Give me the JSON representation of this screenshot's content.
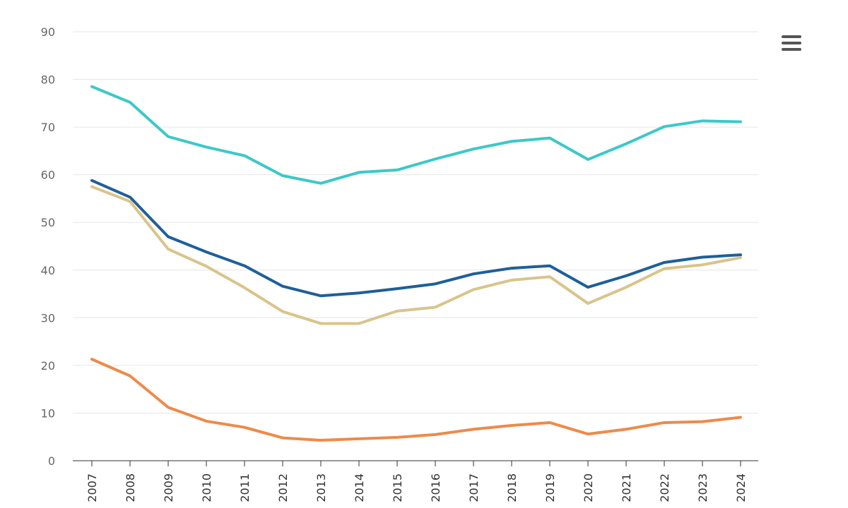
{
  "chart_data": {
    "type": "line",
    "title": "",
    "xlabel": "",
    "ylabel": "",
    "ylim": [
      0,
      90
    ],
    "yticks": [
      0,
      10,
      20,
      30,
      40,
      50,
      60,
      70,
      80,
      90
    ],
    "grid": true,
    "categories": [
      "2007",
      "2008",
      "2009",
      "2010",
      "2011",
      "2012",
      "2013",
      "2014",
      "2015",
      "2016",
      "2017",
      "2018",
      "2019",
      "2020",
      "2021",
      "2022",
      "2023",
      "2024"
    ],
    "series": [
      {
        "color": "#3cc8c8",
        "values": [
          78.5,
          75.2,
          68.0,
          65.8,
          64.0,
          59.8,
          58.2,
          60.5,
          61.0,
          63.3,
          65.4,
          67.0,
          67.7,
          63.2,
          66.5,
          70.1,
          71.3,
          71.1
        ]
      },
      {
        "color": "#1f5f99",
        "values": [
          58.8,
          55.3,
          47.0,
          43.8,
          40.9,
          36.6,
          34.6,
          35.2,
          36.1,
          37.1,
          39.2,
          40.4,
          40.9,
          36.4,
          38.8,
          41.6,
          42.7,
          43.2
        ]
      },
      {
        "color": "#d8c48b",
        "values": [
          57.5,
          54.4,
          44.4,
          40.8,
          36.3,
          31.3,
          28.8,
          28.8,
          31.4,
          32.2,
          35.9,
          37.9,
          38.6,
          33.0,
          36.4,
          40.3,
          41.1,
          42.6
        ]
      },
      {
        "color": "#ee8a4a",
        "values": [
          21.3,
          17.8,
          11.2,
          8.3,
          7.0,
          4.8,
          4.3,
          4.6,
          4.9,
          5.5,
          6.6,
          7.4,
          8.0,
          5.6,
          6.6,
          8.0,
          8.2,
          9.1
        ]
      }
    ]
  },
  "ui": {
    "menu_icon": "hamburger-menu-icon"
  },
  "colors": {
    "grid": "#e6e6e6",
    "axis": "#333333",
    "tick_text": "#666666"
  }
}
